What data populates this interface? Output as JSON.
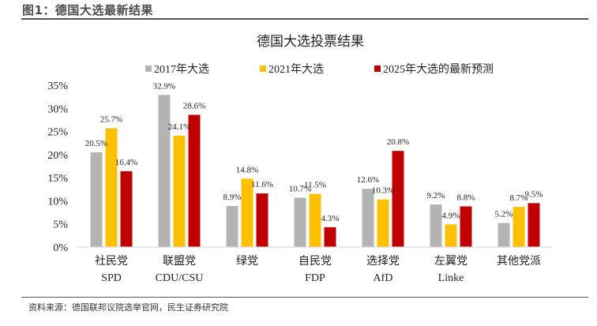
{
  "figure": {
    "title": "图1：德国大选最新结果",
    "source": "资料来源：德国联邦议院选举官网，民生证券研究院"
  },
  "chart_data": {
    "type": "bar",
    "title": "德国大选投票结果",
    "xlabel": "",
    "ylabel": "",
    "ylim": [
      0,
      35
    ],
    "yticks": [
      0,
      5,
      10,
      15,
      20,
      25,
      30,
      35
    ],
    "ytick_labels": [
      "0%",
      "5%",
      "10%",
      "15%",
      "20%",
      "25%",
      "30%",
      "35%"
    ],
    "grid": false,
    "legend_position": "top",
    "categories": [
      {
        "line1": "社民党",
        "line2": "SPD"
      },
      {
        "line1": "联盟党",
        "line2": "CDU/CSU"
      },
      {
        "line1": "绿党",
        "line2": ""
      },
      {
        "line1": "自民党",
        "line2": "FDP"
      },
      {
        "line1": "选择党",
        "line2": "AfD"
      },
      {
        "line1": "左翼党",
        "line2": "Linke"
      },
      {
        "line1": "其他党派",
        "line2": ""
      }
    ],
    "series": [
      {
        "name": "2017年大选",
        "color": "#b3b3b3",
        "values": [
          20.5,
          32.9,
          8.9,
          10.7,
          12.6,
          9.2,
          5.2
        ],
        "labels": [
          "20.5%",
          "32.9%",
          "8.9%",
          "10.7%",
          "12.6%",
          "9.2%",
          "5.2%"
        ]
      },
      {
        "name": "2021年大选",
        "color": "#ffc000",
        "values": [
          25.7,
          24.1,
          14.8,
          11.5,
          10.3,
          4.9,
          8.7
        ],
        "labels": [
          "25.7%",
          "24.1%",
          "14.8%",
          "11.5%",
          "10.3%",
          "4.9%",
          "8.7%"
        ]
      },
      {
        "name": "2025年大选的最新预测",
        "color": "#c00000",
        "values": [
          16.4,
          28.6,
          11.6,
          4.3,
          20.8,
          8.8,
          9.5
        ],
        "labels": [
          "16.4%",
          "28.6%",
          "11.6%",
          "4.3%",
          "20.8%",
          "8.8%",
          "9.5%"
        ]
      }
    ]
  }
}
